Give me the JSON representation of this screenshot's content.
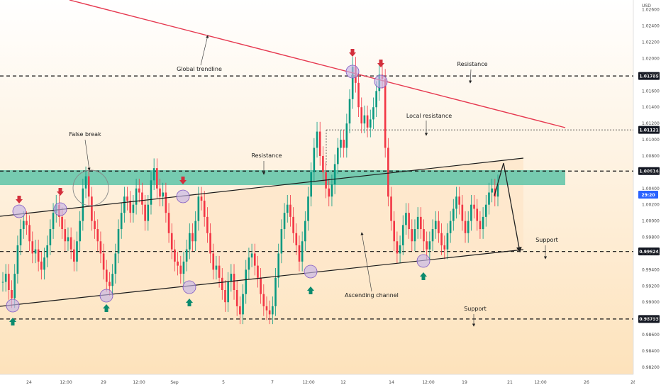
{
  "chart_data": {
    "type": "line",
    "title": "",
    "ylabel": "",
    "xlabel": "",
    "currency": "USD",
    "ylim": [
      0.981,
      1.0285
    ],
    "y_ticks": [
      "1.02600",
      "1.02400",
      "1.02200",
      "1.02000",
      "1.01800",
      "1.01600",
      "1.01400",
      "1.01200",
      "1.01000",
      "1.00800",
      "1.00600",
      "1.00400",
      "1.00200",
      "1.00000",
      "0.99800",
      "0.99600",
      "0.99400",
      "0.99200",
      "0.99000",
      "0.98800",
      "0.98600",
      "0.98400",
      "0.98200"
    ],
    "x_ticks": [
      "24",
      "12:00",
      "29",
      "12:00",
      "Sep",
      "5",
      "7",
      "12:00",
      "12",
      "14",
      "12:00",
      "19",
      "21",
      "12:00",
      "26",
      "28"
    ],
    "grid": false,
    "levels": [
      {
        "value": 1.01785,
        "label": "1.01785",
        "style": "dashed"
      },
      {
        "value": 1.01121,
        "label": "1.01121",
        "style": "dotted"
      },
      {
        "value": 1.00614,
        "label": "1.00614",
        "style": "dashed"
      },
      {
        "value": 0.99624,
        "label": "0.99624",
        "style": "dashed"
      },
      {
        "value": 0.98793,
        "label": "0.98793",
        "style": "dashed"
      }
    ],
    "current_price_label": "29:20",
    "resistance_zone": {
      "from": 1.0057,
      "to": 1.0074,
      "color": "#5ec4a8"
    },
    "channel_area_color": "#fde6c8",
    "up_color": "#089981",
    "down_color": "#f23645",
    "trendline_color": "#e63950",
    "annotations": [
      {
        "key": "global_trendline",
        "text": "Global trendline"
      },
      {
        "key": "resistance_top",
        "text": "Resistance"
      },
      {
        "key": "local_resistance",
        "text": "Local resistance"
      },
      {
        "key": "false_break",
        "text": "False break"
      },
      {
        "key": "resistance_mid",
        "text": "Resistance"
      },
      {
        "key": "support_right",
        "text": "Support"
      },
      {
        "key": "ascending_channel",
        "text": "Ascending channel"
      },
      {
        "key": "support_bottom",
        "text": "Support"
      }
    ],
    "series": [
      {
        "values": [
          0.9925,
          0.9935,
          0.9915,
          0.9905,
          0.9935,
          0.997,
          0.999,
          1.0,
          0.9995,
          0.9975,
          0.996,
          0.9965,
          0.995,
          0.994,
          0.9955,
          0.997,
          0.999,
          1.001,
          1.002,
          1.0005,
          0.999,
          0.9975,
          0.998,
          0.9965,
          0.995,
          0.9975,
          1.0,
          1.004,
          1.0055,
          1.003,
          1.0,
          0.999,
          0.9975,
          0.996,
          0.994,
          0.9925,
          0.992,
          0.9935,
          0.996,
          0.999,
          1.001,
          1.003,
          1.0025,
          1.001,
          1.002,
          1.004,
          1.0035,
          1.002,
          1.0,
          1.002,
          1.005,
          1.0065,
          1.004,
          1.003,
          1.0035,
          1.001,
          0.9985,
          0.9965,
          0.995,
          0.9945,
          0.9935,
          0.995,
          0.9965,
          0.9985,
          0.9975,
          1.0,
          1.003,
          1.0025,
          1.0005,
          0.9985,
          0.996,
          0.994,
          0.9945,
          0.993,
          0.9915,
          0.99,
          0.9925,
          0.9935,
          0.9915,
          0.9895,
          0.9885,
          0.991,
          0.994,
          0.9955,
          0.996,
          0.9945,
          0.993,
          0.991,
          0.9895,
          0.989,
          0.9885,
          0.9895,
          0.993,
          0.996,
          0.999,
          1.001,
          1.002,
          1.0005,
          0.9985,
          0.997,
          0.995,
          0.9975,
          1.0,
          1.003,
          1.006,
          1.009,
          1.011,
          1.008,
          1.006,
          1.004,
          1.003,
          1.0045,
          1.007,
          1.009,
          1.01,
          1.009,
          1.012,
          1.015,
          1.019,
          1.017,
          1.014,
          1.012,
          1.013,
          1.0115,
          1.0125,
          1.014,
          1.016,
          1.018,
          1.0175,
          1.009,
          1.003,
          1.0,
          0.9975,
          0.996,
          0.997,
          0.9995,
          1.001,
          0.999,
          0.9975,
          0.999,
          1.0005,
          0.999,
          0.9975,
          0.9965,
          0.9975,
          0.999,
          1.0,
          0.9985,
          0.997,
          0.9965,
          0.9985,
          1.0,
          1.0015,
          1.003,
          1.002,
          1.0,
          0.9985,
          1.0,
          1.002,
          1.0015,
          1.0,
          0.999,
          1.0005,
          1.002,
          1.0035,
          1.004,
          1.003,
          1.0045
        ]
      }
    ]
  }
}
